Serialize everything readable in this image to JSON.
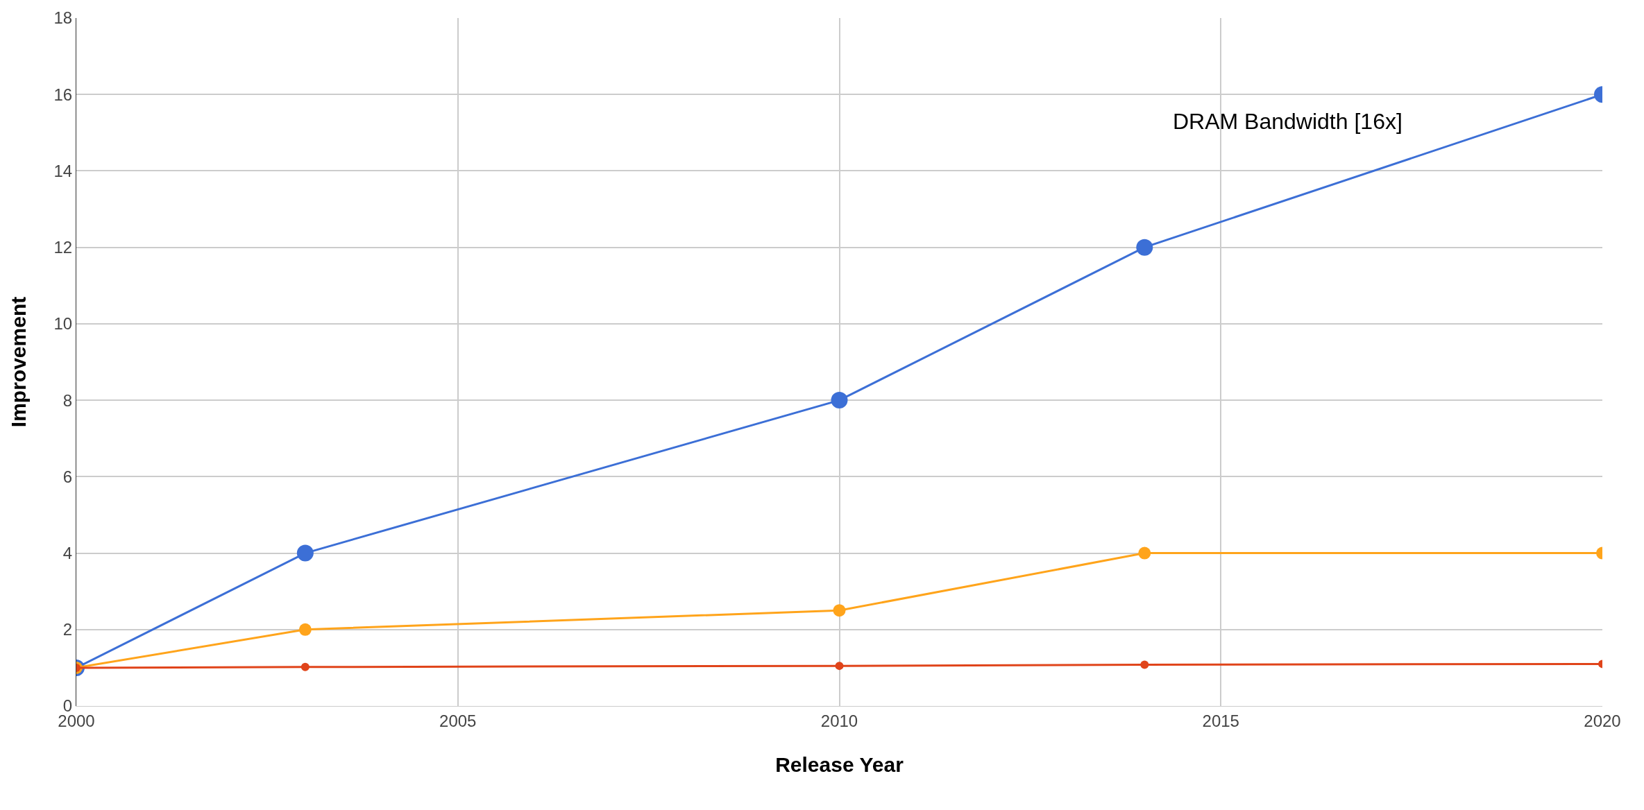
{
  "chart_data": {
    "type": "line",
    "xlabel": "Release Year",
    "ylabel": "Improvement",
    "x": [
      2000,
      2003,
      2010,
      2014,
      2020
    ],
    "series": [
      {
        "color": "#3c6fd6",
        "values": [
          1,
          4,
          8,
          12,
          16
        ]
      },
      {
        "color": "#ffa41b",
        "values": [
          1,
          2,
          2.5,
          4,
          4
        ]
      },
      {
        "color": "#e0441a",
        "values": [
          1,
          1.02,
          1.05,
          1.08,
          1.1
        ]
      }
    ],
    "annotations": [
      "DRAM Bandwidth [16x]"
    ],
    "xlim": [
      2000,
      2020
    ],
    "xticks": [
      2000,
      2005,
      2010,
      2015,
      2020
    ],
    "ylim": [
      0,
      18
    ],
    "yticks": [
      0,
      2,
      4,
      6,
      8,
      10,
      12,
      14,
      16,
      18
    ],
    "grid": true,
    "marker": "circle",
    "line_style": "solid"
  }
}
